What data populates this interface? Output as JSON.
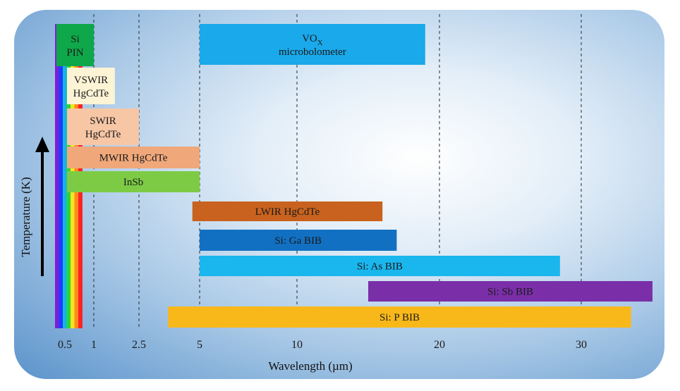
{
  "chart_data": {
    "type": "bar",
    "orientation": "horizontal-range",
    "xlabel": "Wavelength (µm)",
    "ylabel": "Temperature (K)",
    "x_ticks": [
      "0.5",
      "1",
      "2.5",
      "5",
      "10",
      "20",
      "30"
    ],
    "grid": "vertical dashed lines",
    "spectrum_band_colors": [
      "#7a1fd6",
      "#1e3cff",
      "#16b3e6",
      "#2fd23a",
      "#f2e61e",
      "#ff8a1e",
      "#ff2020"
    ],
    "series": [
      {
        "name": "VO_X microbolometer",
        "label": "VO",
        "label_sub": "X",
        "label_line2": "microbolometer",
        "x_start": "5",
        "x_end": "19",
        "color": "#1aa9ea"
      },
      {
        "name": "Si PIN",
        "label": "Si",
        "label_line2": "PIN",
        "x_start": "0.5",
        "x_end": "1",
        "color": "#0ea84a"
      },
      {
        "name": "VSWIR HgCdTe",
        "label": "VSWIR",
        "label_line2": "HgCdTe",
        "x_start": "0.5",
        "x_end": "1.7",
        "color": "#fdf3d5"
      },
      {
        "name": "SWIR HgCdTe",
        "label": "SWIR",
        "label_line2": "HgCdTe",
        "x_start": "0.5",
        "x_end": "2.5",
        "color": "#f7c6a5"
      },
      {
        "name": "MWIR HgCdTe",
        "label": "MWIR HgCdTe",
        "x_start": "0.5",
        "x_end": "5",
        "color": "#f0a87a"
      },
      {
        "name": "InSb",
        "label": "InSb",
        "x_start": "0.5",
        "x_end": "5",
        "color": "#7dcb45"
      },
      {
        "name": "LWIR HgCdTe",
        "label": "LWIR HgCdTe",
        "x_start": "4.7",
        "x_end": "16",
        "color": "#c8621e"
      },
      {
        "name": "Si: Ga BIB",
        "label": "Si: Ga BIB",
        "x_start": "5",
        "x_end": "17",
        "color": "#1270c2"
      },
      {
        "name": "Si: As BIB",
        "label": "Si: As BIB",
        "x_start": "5",
        "x_end": "28.5",
        "color": "#1ab6ee"
      },
      {
        "name": "Si: Sb BIB",
        "label": "Si: Sb BIB",
        "x_start": "15",
        "x_end": "35",
        "color": "#7a2fa8"
      },
      {
        "name": "Si: P BIB",
        "label": "Si: P BIB",
        "x_start": "3.7",
        "x_end": "33.5",
        "color": "#f9b81a"
      }
    ]
  }
}
